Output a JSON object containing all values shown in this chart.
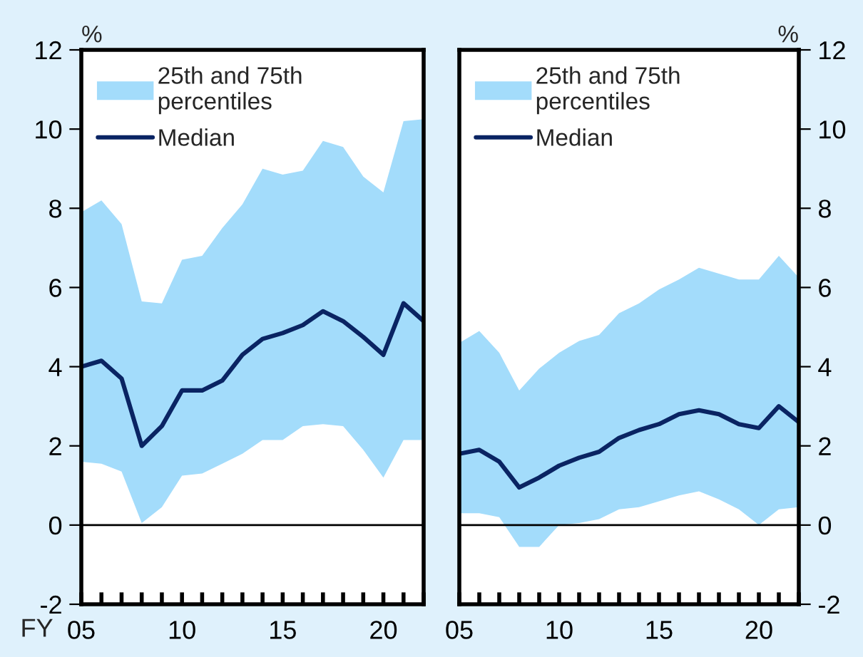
{
  "chart_data": [
    {
      "type": "line",
      "xlabel": "FY",
      "ylabel": "%",
      "x": [
        5,
        6,
        7,
        8,
        9,
        10,
        11,
        12,
        13,
        14,
        15,
        16,
        17,
        18,
        19,
        20,
        21,
        22
      ],
      "annotations": [
        "25th and 75th percentiles"
      ],
      "series": [
        {
          "name": "Median",
          "color": "#0a2463",
          "values": [
            4.0,
            4.15,
            3.7,
            2.0,
            2.5,
            3.4,
            3.4,
            3.65,
            4.3,
            4.7,
            4.85,
            5.05,
            5.4,
            5.15,
            4.75,
            4.3,
            5.6,
            5.15
          ],
          "lower": [
            1.6,
            1.55,
            1.35,
            0.05,
            0.45,
            1.25,
            1.3,
            1.55,
            1.8,
            2.15,
            2.15,
            2.5,
            2.55,
            2.5,
            1.9,
            1.2,
            2.15,
            2.15
          ],
          "upper": [
            7.9,
            8.2,
            7.6,
            5.65,
            5.6,
            6.7,
            6.8,
            7.5,
            8.1,
            9.0,
            8.85,
            8.95,
            9.7,
            9.55,
            8.8,
            8.4,
            10.2,
            10.25
          ]
        }
      ],
      "xlim": [
        5,
        22
      ],
      "xticks": [
        {
          "value": 5,
          "label": "05"
        },
        {
          "value": 6,
          "label": null
        },
        {
          "value": 7,
          "label": null
        },
        {
          "value": 8,
          "label": null
        },
        {
          "value": 9,
          "label": null
        },
        {
          "value": 10,
          "label": "10"
        },
        {
          "value": 11,
          "label": null
        },
        {
          "value": 12,
          "label": null
        },
        {
          "value": 13,
          "label": null
        },
        {
          "value": 14,
          "label": null
        },
        {
          "value": 15,
          "label": "15"
        },
        {
          "value": 16,
          "label": null
        },
        {
          "value": 17,
          "label": null
        },
        {
          "value": 18,
          "label": null
        },
        {
          "value": 19,
          "label": null
        },
        {
          "value": 20,
          "label": "20"
        },
        {
          "value": 21,
          "label": null
        },
        {
          "value": 22,
          "label": null
        }
      ],
      "ylim": [
        -2,
        12
      ],
      "yticks": [
        -2,
        0,
        2,
        4,
        6,
        8,
        10,
        12
      ],
      "ref_lines": [
        {
          "axis": "y",
          "value": 0,
          "color": "#000000"
        }
      ],
      "legend": "top left",
      "grid": false
    },
    {
      "type": "line",
      "y2label": "%",
      "x": [
        5,
        6,
        7,
        8,
        9,
        10,
        11,
        12,
        13,
        14,
        15,
        16,
        17,
        18,
        19,
        20,
        21,
        22
      ],
      "annotations": [
        "25th and 75th percentiles"
      ],
      "series": [
        {
          "name": "Median",
          "axis": "y2",
          "color": "#0a2463",
          "values": [
            1.8,
            1.9,
            1.6,
            0.95,
            1.2,
            1.5,
            1.7,
            1.85,
            2.2,
            2.4,
            2.55,
            2.8,
            2.9,
            2.8,
            2.55,
            2.45,
            3.0,
            2.6
          ],
          "lower": [
            0.3,
            0.3,
            0.2,
            -0.55,
            -0.55,
            0.0,
            0.05,
            0.15,
            0.4,
            0.45,
            0.6,
            0.75,
            0.85,
            0.65,
            0.4,
            0.0,
            0.4,
            0.45
          ],
          "upper": [
            4.6,
            4.9,
            4.35,
            3.4,
            3.95,
            4.35,
            4.65,
            4.8,
            5.35,
            5.6,
            5.95,
            6.2,
            6.5,
            6.35,
            6.2,
            6.2,
            6.8,
            6.25
          ]
        }
      ],
      "xlim": [
        5,
        22
      ],
      "xticks": [
        {
          "value": 5,
          "label": "05"
        },
        {
          "value": 6,
          "label": null
        },
        {
          "value": 7,
          "label": null
        },
        {
          "value": 8,
          "label": null
        },
        {
          "value": 9,
          "label": null
        },
        {
          "value": 10,
          "label": "10"
        },
        {
          "value": 11,
          "label": null
        },
        {
          "value": 12,
          "label": null
        },
        {
          "value": 13,
          "label": null
        },
        {
          "value": 14,
          "label": null
        },
        {
          "value": 15,
          "label": "15"
        },
        {
          "value": 16,
          "label": null
        },
        {
          "value": 17,
          "label": null
        },
        {
          "value": 18,
          "label": null
        },
        {
          "value": 19,
          "label": null
        },
        {
          "value": 20,
          "label": "20"
        },
        {
          "value": 21,
          "label": null
        },
        {
          "value": 22,
          "label": null
        }
      ],
      "y2lim": [
        -2,
        12
      ],
      "y2ticks": [
        -2,
        0,
        2,
        4,
        6,
        8,
        10,
        12
      ],
      "ref_lines": [
        {
          "axis": "y2",
          "value": 0,
          "color": "#000000"
        }
      ],
      "legend": "top left",
      "grid": false
    }
  ]
}
